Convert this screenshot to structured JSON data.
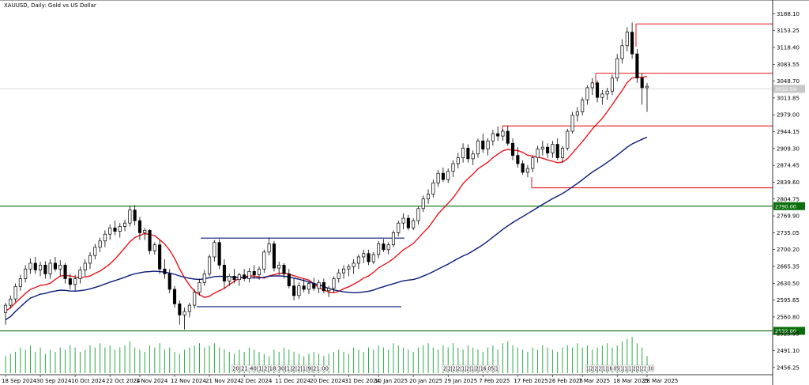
{
  "chart_title": "XAUUSD, Daily: Gold vs US Dollar",
  "chart_data": {
    "type": "candlestick",
    "title": "XAUUSD, Daily: Gold vs US Dollar",
    "ylim": [
      2441.3,
      3203.4
    ],
    "y_ticks": [
      "3188.10",
      "3153.25",
      "3118.40",
      "3083.55",
      "3048.70",
      "3013.85",
      "2979.00",
      "2944.15",
      "2909.30",
      "2874.45",
      "2839.60",
      "2804.75",
      "2769.90",
      "2735.05",
      "2700.20",
      "2665.35",
      "2630.50",
      "2595.65",
      "2560.80",
      "2525.95",
      "2491.10",
      "2456.25"
    ],
    "x_labels": [
      "18 Sep 2024",
      "30 Sep 2024",
      "10 Oct 2024",
      "22 Oct 2024",
      "1 Nov 2024",
      "12 Nov 2024",
      "21 Nov 2024",
      "2 Dec 2024",
      "11 Dec 2024",
      "20 Dec 2024",
      "31 Dec 2024",
      "10 Jan 2025",
      "20 Jan 2025",
      "29 Jan 2025",
      "7 Feb 2025",
      "17 Feb 2025",
      "26 Feb 2025",
      "7 Mar 2025",
      "18 Mar 2025",
      "28 Mar 2025"
    ],
    "ohlc": [
      [
        2570,
        2590,
        2545,
        2585
      ],
      [
        2585,
        2605,
        2578,
        2598
      ],
      [
        2598,
        2630,
        2592,
        2624
      ],
      [
        2624,
        2648,
        2615,
        2640
      ],
      [
        2640,
        2668,
        2632,
        2660
      ],
      [
        2660,
        2682,
        2650,
        2672
      ],
      [
        2672,
        2685,
        2650,
        2658
      ],
      [
        2658,
        2675,
        2645,
        2668
      ],
      [
        2668,
        2676,
        2640,
        2650
      ],
      [
        2650,
        2680,
        2640,
        2672
      ],
      [
        2672,
        2685,
        2655,
        2660
      ],
      [
        2660,
        2678,
        2645,
        2668
      ],
      [
        2668,
        2672,
        2630,
        2640
      ],
      [
        2640,
        2650,
        2618,
        2628
      ],
      [
        2628,
        2648,
        2615,
        2640
      ],
      [
        2640,
        2665,
        2630,
        2658
      ],
      [
        2658,
        2680,
        2645,
        2672
      ],
      [
        2672,
        2695,
        2660,
        2688
      ],
      [
        2688,
        2712,
        2680,
        2705
      ],
      [
        2705,
        2725,
        2695,
        2718
      ],
      [
        2718,
        2740,
        2705,
        2732
      ],
      [
        2732,
        2752,
        2720,
        2745
      ],
      [
        2745,
        2760,
        2730,
        2738
      ],
      [
        2738,
        2755,
        2725,
        2748
      ],
      [
        2748,
        2762,
        2738,
        2755
      ],
      [
        2755,
        2790,
        2748,
        2782
      ],
      [
        2782,
        2792,
        2750,
        2760
      ],
      [
        2760,
        2768,
        2720,
        2735
      ],
      [
        2735,
        2745,
        2720,
        2740
      ],
      [
        2740,
        2742,
        2690,
        2698
      ],
      [
        2698,
        2715,
        2690,
        2710
      ],
      [
        2710,
        2720,
        2650,
        2660
      ],
      [
        2660,
        2680,
        2640,
        2650
      ],
      [
        2650,
        2660,
        2610,
        2618
      ],
      [
        2618,
        2625,
        2580,
        2588
      ],
      [
        2588,
        2595,
        2545,
        2565
      ],
      [
        2565,
        2580,
        2535,
        2572
      ],
      [
        2572,
        2590,
        2560,
        2585
      ],
      [
        2585,
        2618,
        2578,
        2612
      ],
      [
        2612,
        2640,
        2605,
        2632
      ],
      [
        2632,
        2658,
        2625,
        2650
      ],
      [
        2650,
        2690,
        2645,
        2685
      ],
      [
        2685,
        2720,
        2676,
        2715
      ],
      [
        2715,
        2722,
        2660,
        2668
      ],
      [
        2668,
        2680,
        2620,
        2635
      ],
      [
        2635,
        2650,
        2625,
        2645
      ],
      [
        2645,
        2660,
        2630,
        2638
      ],
      [
        2638,
        2652,
        2625,
        2648
      ],
      [
        2648,
        2660,
        2635,
        2640
      ],
      [
        2640,
        2662,
        2632,
        2655
      ],
      [
        2655,
        2668,
        2640,
        2648
      ],
      [
        2648,
        2665,
        2638,
        2660
      ],
      [
        2660,
        2700,
        2652,
        2695
      ],
      [
        2695,
        2725,
        2688,
        2712
      ],
      [
        2712,
        2718,
        2655,
        2662
      ],
      [
        2662,
        2675,
        2648,
        2668
      ],
      [
        2668,
        2672,
        2640,
        2650
      ],
      [
        2650,
        2660,
        2620,
        2625
      ],
      [
        2625,
        2640,
        2595,
        2605
      ],
      [
        2605,
        2632,
        2598,
        2625
      ],
      [
        2625,
        2640,
        2612,
        2618
      ],
      [
        2618,
        2635,
        2608,
        2630
      ],
      [
        2630,
        2642,
        2615,
        2620
      ],
      [
        2620,
        2638,
        2610,
        2632
      ],
      [
        2632,
        2640,
        2610,
        2615
      ],
      [
        2615,
        2625,
        2602,
        2620
      ],
      [
        2620,
        2645,
        2612,
        2640
      ],
      [
        2640,
        2660,
        2632,
        2652
      ],
      [
        2652,
        2668,
        2640,
        2660
      ],
      [
        2660,
        2670,
        2645,
        2665
      ],
      [
        2665,
        2680,
        2650,
        2672
      ],
      [
        2672,
        2690,
        2660,
        2685
      ],
      [
        2685,
        2700,
        2672,
        2692
      ],
      [
        2692,
        2700,
        2668,
        2675
      ],
      [
        2675,
        2695,
        2670,
        2690
      ],
      [
        2690,
        2718,
        2682,
        2712
      ],
      [
        2712,
        2722,
        2695,
        2700
      ],
      [
        2700,
        2715,
        2690,
        2710
      ],
      [
        2710,
        2740,
        2705,
        2735
      ],
      [
        2735,
        2760,
        2728,
        2755
      ],
      [
        2755,
        2775,
        2742,
        2765
      ],
      [
        2765,
        2772,
        2740,
        2745
      ],
      [
        2745,
        2765,
        2740,
        2760
      ],
      [
        2760,
        2790,
        2752,
        2785
      ],
      [
        2785,
        2812,
        2778,
        2805
      ],
      [
        2805,
        2825,
        2795,
        2815
      ],
      [
        2815,
        2845,
        2808,
        2838
      ],
      [
        2838,
        2865,
        2830,
        2858
      ],
      [
        2858,
        2870,
        2840,
        2845
      ],
      [
        2845,
        2868,
        2838,
        2862
      ],
      [
        2862,
        2885,
        2850,
        2878
      ],
      [
        2878,
        2900,
        2868,
        2890
      ],
      [
        2890,
        2920,
        2880,
        2910
      ],
      [
        2910,
        2918,
        2880,
        2888
      ],
      [
        2888,
        2905,
        2875,
        2898
      ],
      [
        2898,
        2930,
        2890,
        2925
      ],
      [
        2925,
        2940,
        2900,
        2908
      ],
      [
        2908,
        2930,
        2895,
        2925
      ],
      [
        2925,
        2948,
        2915,
        2940
      ],
      [
        2940,
        2955,
        2925,
        2935
      ],
      [
        2935,
        2950,
        2925,
        2945
      ],
      [
        2945,
        2956,
        2915,
        2920
      ],
      [
        2920,
        2930,
        2885,
        2895
      ],
      [
        2895,
        2912,
        2870,
        2878
      ],
      [
        2878,
        2885,
        2855,
        2860
      ],
      [
        2860,
        2875,
        2850,
        2868
      ],
      [
        2868,
        2895,
        2860,
        2890
      ],
      [
        2890,
        2915,
        2880,
        2908
      ],
      [
        2908,
        2925,
        2895,
        2912
      ],
      [
        2912,
        2920,
        2890,
        2900
      ],
      [
        2900,
        2925,
        2890,
        2918
      ],
      [
        2918,
        2930,
        2885,
        2890
      ],
      [
        2890,
        2915,
        2880,
        2910
      ],
      [
        2910,
        2950,
        2905,
        2945
      ],
      [
        2945,
        2985,
        2940,
        2978
      ],
      [
        2978,
        2995,
        2965,
        2985
      ],
      [
        2985,
        3015,
        2978,
        3010
      ],
      [
        3010,
        3040,
        3000,
        3035
      ],
      [
        3035,
        3055,
        3020,
        3045
      ],
      [
        3045,
        3050,
        3005,
        3015
      ],
      [
        3015,
        3030,
        3000,
        3022
      ],
      [
        3022,
        3035,
        3010,
        3028
      ],
      [
        3028,
        3062,
        3020,
        3055
      ],
      [
        3055,
        3105,
        3048,
        3095
      ],
      [
        3095,
        3135,
        3085,
        3122
      ],
      [
        3122,
        3160,
        3110,
        3150
      ],
      [
        3150,
        3170,
        3095,
        3105
      ],
      [
        3105,
        3115,
        3045,
        3055
      ],
      [
        3055,
        3065,
        3000,
        3035
      ],
      [
        3035,
        3045,
        2985,
        3038
      ]
    ],
    "volume": [
      8,
      9,
      10,
      12,
      11,
      13,
      10,
      12,
      9,
      11,
      10,
      12,
      11,
      13,
      12,
      10,
      11,
      13,
      12,
      14,
      12,
      13,
      11,
      12,
      13,
      15,
      12,
      11,
      10,
      13,
      12,
      14,
      11,
      12,
      10,
      9,
      11,
      12,
      13,
      14,
      12,
      13,
      14,
      12,
      11,
      10,
      9,
      11,
      10,
      12,
      11,
      10,
      9,
      8,
      11,
      10,
      12,
      11,
      10,
      9,
      8,
      9,
      10,
      9,
      8,
      9,
      10,
      11,
      10,
      9,
      12,
      11,
      10,
      12,
      11,
      13,
      12,
      11,
      14,
      13,
      12,
      11,
      10,
      12,
      13,
      14,
      12,
      11,
      13,
      12,
      14,
      12,
      11,
      13,
      12,
      11,
      10,
      12,
      13,
      11,
      14,
      15,
      13,
      12,
      11,
      10,
      12,
      11,
      13,
      12,
      11,
      10,
      12,
      13,
      12,
      14,
      12,
      13,
      11,
      12,
      13,
      14,
      12,
      13,
      15,
      16,
      17,
      14,
      12,
      8
    ],
    "series": [
      {
        "name": "",
        "color": "#e8151b"
      },
      {
        "name": "",
        "color": "#0a1a7a"
      }
    ],
    "horizontal_levels": [
      {
        "value": 2790.0,
        "label": "2790.00",
        "color": "#0a6e0a"
      },
      {
        "value": 2532.0,
        "label": "2532.00",
        "color": "#0a6e0a"
      },
      {
        "value": 3167.0,
        "color": "#e8151b"
      },
      {
        "value": 3065.0,
        "color": "#e8151b"
      },
      {
        "value": 2956.0,
        "color": "#e8151b"
      },
      {
        "value": 2828.0,
        "color": "#e8151b"
      },
      {
        "value": 2724.0,
        "color": "#0a1a7a"
      },
      {
        "value": 2582.0,
        "color": "#0a1a7a"
      }
    ],
    "current_price_label": "3032.59",
    "session_strips": [
      "20|21:40|1|2|18:30|1|2|2|1|9|21:00",
      "2|2|2|2|1|2|1|2|16:05|1",
      "1|2|2|2|1|16:05|1|1|1|2|2|22:30"
    ]
  }
}
